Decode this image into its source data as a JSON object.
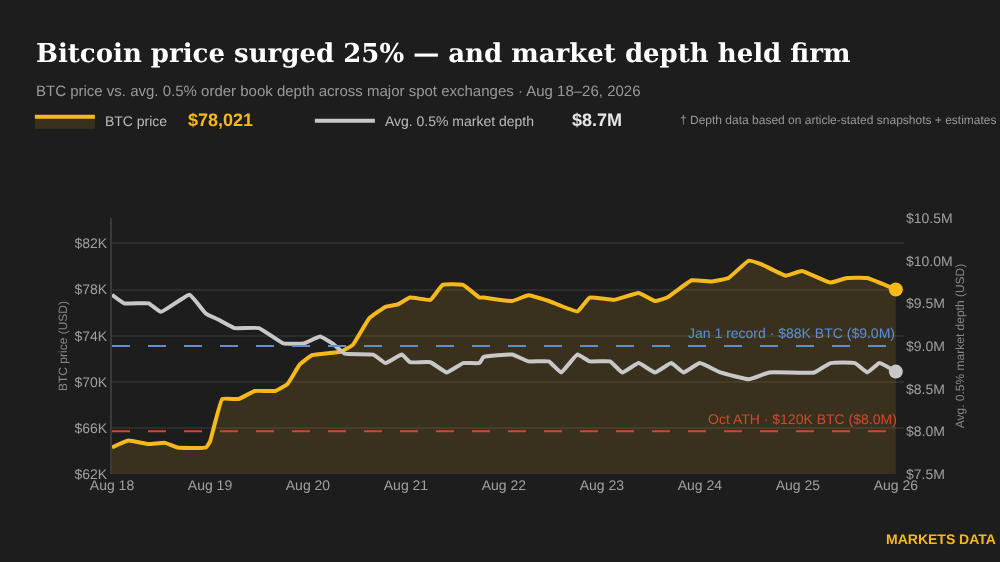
{
  "chart_data": {
    "type": "line",
    "title": "Bitcoin price surged 25% — and market depth held firm",
    "subtitle": "BTC price vs. avg. 0.5% order book depth across major spot exchanges · Aug 18–26, 2026",
    "ylabel": "BTC price (USD)",
    "y2label": "Avg. 0.5% market depth (USD)",
    "annotations": [
      "$78,021",
      "$8.7M",
      "† Depth data based on article-stated snapshots + estimates",
      "MARKETS DATA"
    ],
    "xlim": [
      "2026-08-18T00:00",
      "2026-08-26T02:00"
    ],
    "xticks": [
      {
        "value": "2026-08-18",
        "label": "Aug 18"
      },
      {
        "value": "2026-08-19",
        "label": "Aug 19"
      },
      {
        "value": "2026-08-20",
        "label": "Aug 20"
      },
      {
        "value": "2026-08-21",
        "label": "Aug 21"
      },
      {
        "value": "2026-08-22",
        "label": "Aug 22"
      },
      {
        "value": "2026-08-23",
        "label": "Aug 23"
      },
      {
        "value": "2026-08-24",
        "label": "Aug 24"
      },
      {
        "value": "2026-08-25",
        "label": "Aug 25"
      },
      {
        "value": "2026-08-26",
        "label": "Aug 26"
      }
    ],
    "ylim": [
      62,
      84.2
    ],
    "yticks": [
      {
        "value": 62,
        "label": "$62K"
      },
      {
        "value": 66,
        "label": "$66K"
      },
      {
        "value": 70,
        "label": "$70K"
      },
      {
        "value": 74,
        "label": "$74K"
      },
      {
        "value": 78,
        "label": "$78K"
      },
      {
        "value": 82,
        "label": "$82K"
      }
    ],
    "y2lim": [
      7.5,
      10.5
    ],
    "y2ticks": [
      {
        "value": 7.5,
        "label": "$7.5M"
      },
      {
        "value": 8.0,
        "label": "$8.0M"
      },
      {
        "value": 8.5,
        "label": "$8.5M"
      },
      {
        "value": 9.0,
        "label": "$9.0M"
      },
      {
        "value": 9.5,
        "label": "$9.5M"
      },
      {
        "value": 10.0,
        "label": "$10.0M"
      },
      {
        "value": 10.5,
        "label": "$10.5M"
      }
    ],
    "grid": "y",
    "legend": "top",
    "marker": "none",
    "line_style": "solid",
    "ref_lines": [
      {
        "axis": "y2",
        "value": 9.0,
        "label": "Jan 1 record · $88K BTC ($9.0M)",
        "color": "#5b8fd6",
        "line_style": "dashed"
      },
      {
        "axis": "y2",
        "value": 8.0,
        "label": "Oct ATH · $120K BTC ($8.0M)",
        "color": "#d0492e",
        "line_style": "dashed"
      }
    ],
    "series": [
      {
        "name": "BTC price",
        "type": "area",
        "color": "#f5b91c",
        "x": [
          "2026-08-18T00:00",
          "2026-08-18T04:00",
          "2026-08-18T09:00",
          "2026-08-18T13:00",
          "2026-08-18T16:00",
          "2026-08-18T23:00",
          "2026-08-19T00:00",
          "2026-08-19T03:00",
          "2026-08-19T07:00",
          "2026-08-19T11:00",
          "2026-08-19T16:00",
          "2026-08-19T19:00",
          "2026-08-19T22:00",
          "2026-08-20T01:00",
          "2026-08-20T08:00",
          "2026-08-20T11:00",
          "2026-08-20T15:00",
          "2026-08-20T19:00",
          "2026-08-20T22:00",
          "2026-08-21T01:00",
          "2026-08-21T06:00",
          "2026-08-21T09:00",
          "2026-08-21T14:00",
          "2026-08-21T18:00",
          "2026-08-21T19:00",
          "2026-08-22T02:00",
          "2026-08-22T06:00",
          "2026-08-22T11:00",
          "2026-08-22T18:00",
          "2026-08-22T21:00",
          "2026-08-23T03:00",
          "2026-08-23T09:00",
          "2026-08-23T13:00",
          "2026-08-23T16:00",
          "2026-08-23T22:00",
          "2026-08-24T03:00",
          "2026-08-24T07:00",
          "2026-08-24T12:00",
          "2026-08-24T15:00",
          "2026-08-24T21:00",
          "2026-08-25T01:00",
          "2026-08-25T08:00",
          "2026-08-25T12:00",
          "2026-08-25T17:00",
          "2026-08-26T00:00"
        ],
        "values": [
          64.3,
          64.9,
          64.6,
          64.7,
          64.3,
          64.3,
          64.8,
          68.5,
          68.5,
          69.2,
          69.2,
          69.8,
          71.5,
          72.3,
          72.6,
          73.2,
          75.5,
          76.5,
          76.7,
          77.3,
          77.1,
          78.4,
          78.4,
          77.3,
          77.3,
          77.0,
          77.5,
          77.0,
          76.1,
          77.3,
          77.1,
          77.7,
          77.0,
          77.3,
          78.8,
          78.7,
          79.0,
          80.5,
          80.2,
          79.2,
          79.6,
          78.6,
          79.0,
          79.0,
          78.0
        ]
      },
      {
        "name": "Avg. 0.5% market depth",
        "axis": "y2",
        "color": "#c8c8c8",
        "x": [
          "2026-08-18T00:00",
          "2026-08-18T03:00",
          "2026-08-18T09:00",
          "2026-08-18T12:00",
          "2026-08-18T19:00",
          "2026-08-18T23:00",
          "2026-08-19T02:00",
          "2026-08-19T06:00",
          "2026-08-19T12:00",
          "2026-08-19T18:00",
          "2026-08-19T23:00",
          "2026-08-20T03:00",
          "2026-08-20T06:00",
          "2026-08-20T09:00",
          "2026-08-20T16:00",
          "2026-08-20T19:00",
          "2026-08-20T23:00",
          "2026-08-21T01:00",
          "2026-08-21T06:00",
          "2026-08-21T10:00",
          "2026-08-21T14:00",
          "2026-08-21T18:00",
          "2026-08-21T19:00",
          "2026-08-22T02:00",
          "2026-08-22T06:00",
          "2026-08-22T11:00",
          "2026-08-22T14:00",
          "2026-08-22T18:00",
          "2026-08-22T21:00",
          "2026-08-23T02:00",
          "2026-08-23T05:00",
          "2026-08-23T09:00",
          "2026-08-23T13:00",
          "2026-08-23T17:00",
          "2026-08-23T20:00",
          "2026-08-24T00:00",
          "2026-08-24T05:00",
          "2026-08-24T12:00",
          "2026-08-24T17:00",
          "2026-08-25T04:00",
          "2026-08-25T08:00",
          "2026-08-25T14:00",
          "2026-08-25T17:00",
          "2026-08-25T20:00",
          "2026-08-26T00:00"
        ],
        "values": [
          9.6,
          9.5,
          9.5,
          9.4,
          9.6,
          9.38,
          9.31,
          9.21,
          9.21,
          9.03,
          9.03,
          9.11,
          9.03,
          8.91,
          8.9,
          8.8,
          8.9,
          8.81,
          8.81,
          8.69,
          8.8,
          8.8,
          8.87,
          8.9,
          8.82,
          8.82,
          8.69,
          8.9,
          8.82,
          8.82,
          8.69,
          8.8,
          8.69,
          8.8,
          8.69,
          8.8,
          8.69,
          8.61,
          8.69,
          8.69,
          8.8,
          8.8,
          8.69,
          8.8,
          8.7
        ]
      }
    ]
  }
}
